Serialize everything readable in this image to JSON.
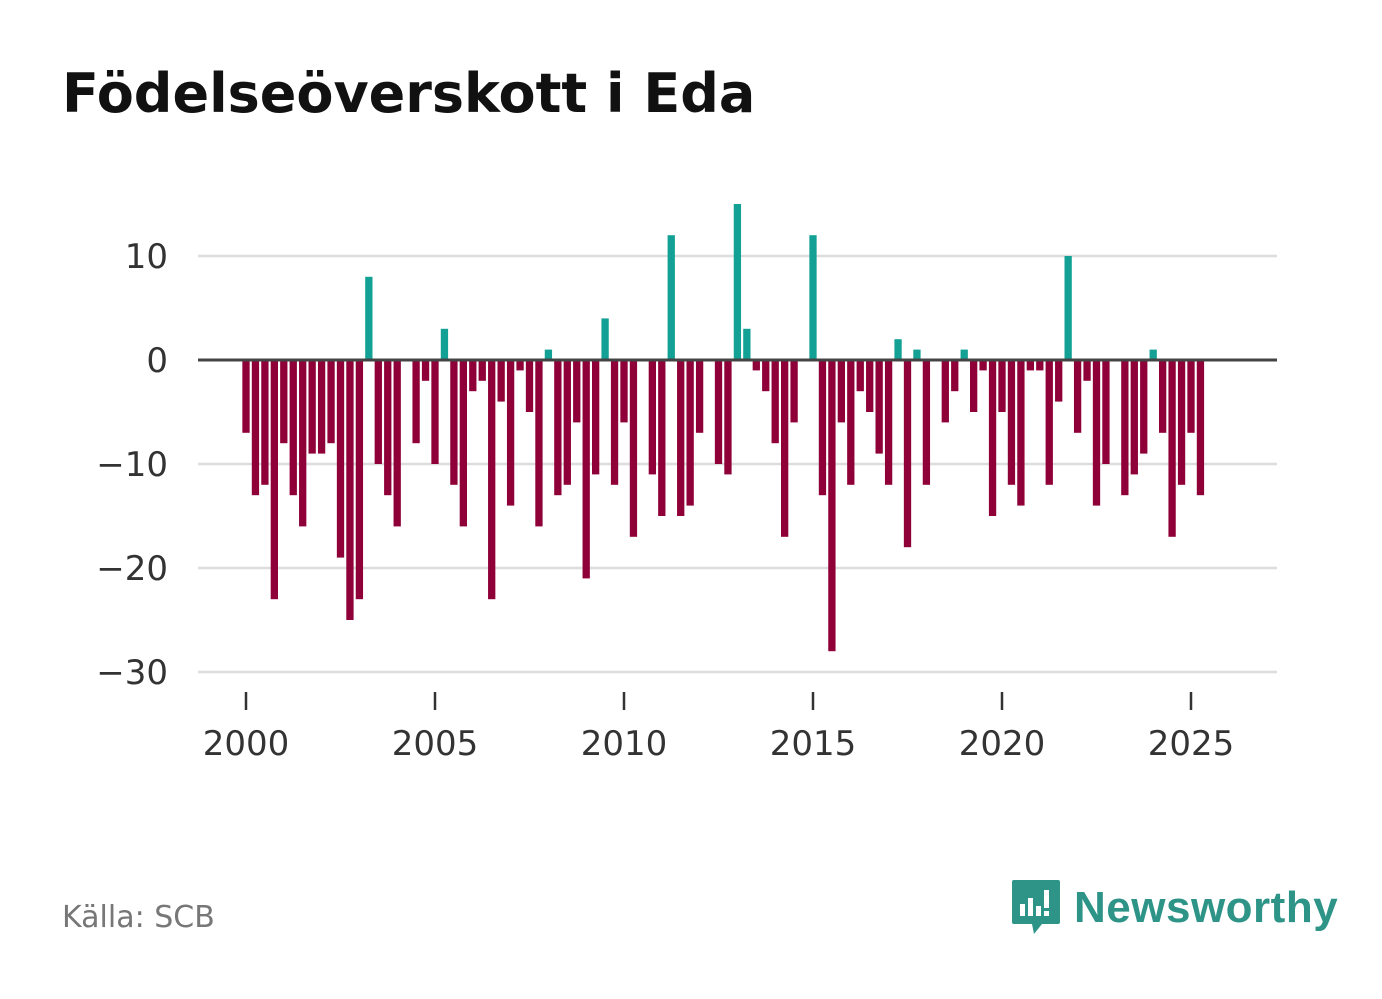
{
  "title": "Födelseöverskott i Eda",
  "source": "Källa: SCB",
  "brand": "Newsworthy",
  "colors": {
    "positive": "#14a195",
    "negative": "#8f0038",
    "brand": "#2e9488"
  },
  "chart_data": {
    "type": "bar",
    "title": "Födelseöverskott i Eda",
    "xlabel": "",
    "ylabel": "",
    "ylim": [
      -30,
      15
    ],
    "yticks": [
      10,
      0,
      -10,
      -20,
      -30
    ],
    "ytick_labels": [
      "10",
      "0",
      "−10",
      "−20",
      "−30"
    ],
    "xticks": [
      2000,
      2005,
      2010,
      2015,
      2020,
      2025
    ],
    "xtick_labels": [
      "2000",
      "2005",
      "2010",
      "2015",
      "2020",
      "2025"
    ],
    "x_start": 2000.0,
    "x_step": 0.25,
    "values": [
      -7,
      -13,
      -12,
      -23,
      -8,
      -13,
      -16,
      -9,
      -9,
      -8,
      -19,
      -25,
      -23,
      8,
      -10,
      -13,
      -16,
      0,
      -8,
      -2,
      -10,
      3,
      -12,
      -16,
      -3,
      -2,
      -23,
      -4,
      -14,
      -1,
      -5,
      -16,
      1,
      -13,
      -12,
      -6,
      -21,
      -11,
      4,
      -12,
      -6,
      -17,
      0,
      -11,
      -15,
      12,
      -15,
      -14,
      -7,
      0,
      -10,
      -11,
      15,
      3,
      -1,
      -3,
      -8,
      -17,
      -6,
      0,
      12,
      -13,
      -28,
      -6,
      -12,
      -3,
      -5,
      -9,
      -12,
      2,
      -18,
      1,
      -12,
      0,
      -6,
      -3,
      1,
      -5,
      -1,
      -15,
      -5,
      -12,
      -14,
      -1,
      -1,
      -12,
      -4,
      10,
      -7,
      -2,
      -14,
      -10,
      0,
      -13,
      -11,
      -9,
      1,
      -7,
      -17,
      -12,
      -7,
      -13
    ]
  }
}
